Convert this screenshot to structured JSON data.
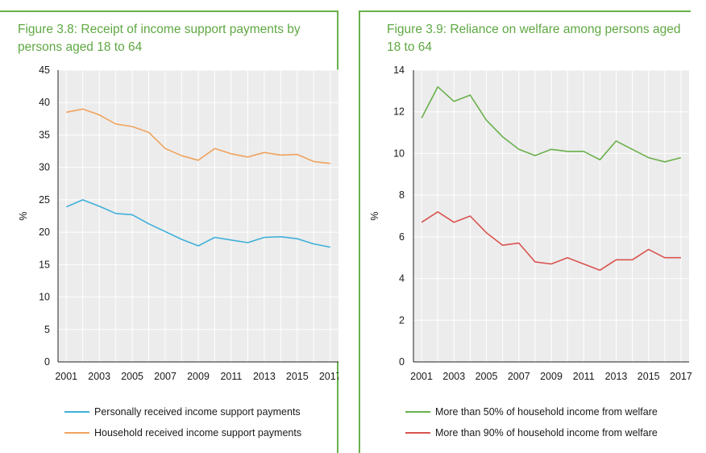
{
  "chart_data": [
    {
      "type": "line",
      "title": "Figure 3.8: Receipt of income support payments by persons aged 18 to 64",
      "ylabel": "%",
      "xlabel": "",
      "ylim": [
        0,
        45
      ],
      "xlim": [
        2001,
        2017
      ],
      "yticks": [
        "0",
        "5",
        "10",
        "15",
        "20",
        "25",
        "30",
        "35",
        "40",
        "45"
      ],
      "xticks": [
        "2001",
        "2003",
        "2005",
        "2007",
        "2009",
        "2011",
        "2013",
        "2015",
        "2017"
      ],
      "grid": true,
      "legend_position": "bottom",
      "x": [
        2001,
        2002,
        2003,
        2004,
        2005,
        2006,
        2007,
        2008,
        2009,
        2010,
        2011,
        2012,
        2013,
        2014,
        2015,
        2016,
        2017
      ],
      "series": [
        {
          "name": "Personally received income support payments",
          "color": "#3fb0d9",
          "values": [
            23.9,
            25.0,
            24.0,
            22.9,
            22.7,
            21.3,
            20.1,
            18.9,
            17.9,
            19.2,
            18.8,
            18.4,
            19.2,
            19.3,
            19.0,
            18.2,
            17.7
          ]
        },
        {
          "name": "Household received income support payments",
          "color": "#f0a35e",
          "values": [
            38.5,
            39.0,
            38.1,
            36.7,
            36.3,
            35.4,
            32.9,
            31.8,
            31.1,
            32.9,
            32.1,
            31.6,
            32.3,
            31.9,
            32.0,
            30.9,
            30.6
          ]
        }
      ]
    },
    {
      "type": "line",
      "title": "Figure 3.9: Reliance on welfare among persons aged 18 to 64",
      "ylabel": "%",
      "xlabel": "",
      "ylim": [
        0,
        14
      ],
      "xlim": [
        2001,
        2017
      ],
      "yticks": [
        "0",
        "2",
        "4",
        "6",
        "8",
        "10",
        "12",
        "14"
      ],
      "xticks": [
        "2001",
        "2003",
        "2005",
        "2007",
        "2009",
        "2011",
        "2013",
        "2015",
        "2017"
      ],
      "grid": true,
      "legend_position": "bottom",
      "x": [
        2001,
        2002,
        2003,
        2004,
        2005,
        2006,
        2007,
        2008,
        2009,
        2010,
        2011,
        2012,
        2013,
        2014,
        2015,
        2016,
        2017
      ],
      "series": [
        {
          "name": "More than 50% of household income from welfare",
          "color": "#6ab04c",
          "values": [
            11.7,
            13.2,
            12.5,
            12.8,
            11.6,
            10.8,
            10.2,
            9.9,
            10.2,
            10.1,
            10.1,
            9.7,
            10.6,
            10.2,
            9.8,
            9.6,
            9.8
          ]
        },
        {
          "name": "More than 90% of household income from welfare",
          "color": "#d9534f",
          "values": [
            6.7,
            7.2,
            6.7,
            7.0,
            6.2,
            5.6,
            5.7,
            4.8,
            4.7,
            5.0,
            4.7,
            4.4,
            4.9,
            4.9,
            5.4,
            5.0,
            5.0
          ]
        }
      ]
    }
  ]
}
